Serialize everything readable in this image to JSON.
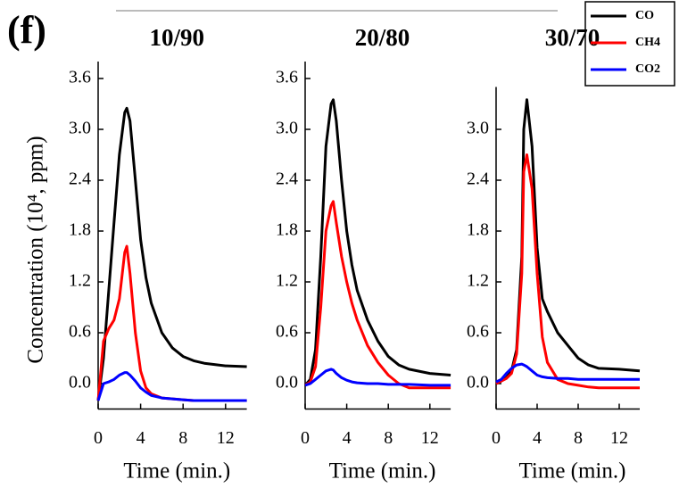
{
  "chart_data": [
    {
      "type": "line",
      "title": "10/90",
      "annotation": "(f)",
      "ylabel": "Concentration (10⁴, ppm)",
      "xlabel": "Time (min.)",
      "legend": "top-right",
      "x": [
        0,
        0.5,
        1,
        1.5,
        2,
        2.5,
        2.7,
        3,
        3.5,
        4,
        4.5,
        5,
        6,
        7,
        8,
        9,
        10,
        12,
        14
      ],
      "series": [
        {
          "name": "CO",
          "color": "#000000",
          "values": [
            -0.2,
            0.3,
            1.1,
            1.9,
            2.7,
            3.2,
            3.25,
            3.1,
            2.4,
            1.7,
            1.25,
            0.95,
            0.6,
            0.42,
            0.32,
            0.27,
            0.24,
            0.21,
            0.2
          ]
        },
        {
          "name": "CH4",
          "color": "#ff0000",
          "values": [
            -0.2,
            0.5,
            0.65,
            0.75,
            1.0,
            1.55,
            1.62,
            1.3,
            0.6,
            0.15,
            -0.05,
            -0.12,
            -0.17,
            -0.18,
            -0.19,
            -0.2,
            -0.2,
            -0.2,
            -0.2
          ]
        },
        {
          "name": "CO2",
          "color": "#0000ff",
          "values": [
            -0.2,
            0.0,
            0.02,
            0.05,
            0.1,
            0.13,
            0.13,
            0.1,
            0.03,
            -0.05,
            -0.1,
            -0.14,
            -0.17,
            -0.18,
            -0.19,
            -0.2,
            -0.2,
            -0.2,
            -0.2
          ]
        }
      ],
      "xlim": [
        0,
        14
      ],
      "ylim": [
        -0.3,
        3.8
      ],
      "xticks": [
        0,
        4,
        8,
        12
      ],
      "yticks": [
        {
          "value": 0,
          "label": "0.0"
        },
        0.6,
        1.2,
        1.8,
        2.4,
        {
          "value": 3,
          "label": "3.0"
        },
        3.6
      ]
    },
    {
      "type": "line",
      "title": "20/80",
      "xlabel": "Time (min.)",
      "x": [
        0,
        0.5,
        1,
        1.5,
        2,
        2.5,
        2.7,
        3,
        3.5,
        4,
        4.5,
        5,
        6,
        7,
        8,
        9,
        10,
        12,
        14
      ],
      "series": [
        {
          "color": "#000000",
          "values": [
            -0.02,
            0.05,
            0.4,
            1.5,
            2.8,
            3.3,
            3.35,
            3.1,
            2.4,
            1.8,
            1.4,
            1.1,
            0.75,
            0.5,
            0.32,
            0.22,
            0.17,
            0.12,
            0.1
          ]
        },
        {
          "color": "#ff0000",
          "values": [
            -0.02,
            0.02,
            0.2,
            0.9,
            1.8,
            2.1,
            2.15,
            1.9,
            1.5,
            1.2,
            0.95,
            0.75,
            0.45,
            0.25,
            0.1,
            0.0,
            -0.05,
            -0.05,
            -0.05
          ]
        },
        {
          "color": "#0000ff",
          "values": [
            -0.02,
            0.0,
            0.05,
            0.1,
            0.15,
            0.17,
            0.16,
            0.12,
            0.07,
            0.04,
            0.02,
            0.01,
            0,
            0,
            -0.01,
            -0.01,
            -0.01,
            -0.02,
            -0.02
          ]
        }
      ],
      "xlim": [
        0,
        14
      ],
      "ylim": [
        -0.3,
        3.8
      ],
      "xticks": [
        0,
        4,
        8,
        12
      ],
      "yticks": [
        {
          "value": 0,
          "label": "0.0"
        },
        0.6,
        1.2,
        1.8,
        2.4,
        {
          "value": 3,
          "label": "3.0"
        },
        3.6
      ]
    },
    {
      "type": "line",
      "title": "30/70",
      "xlabel": "Time (min.)",
      "x": [
        0,
        0.5,
        1,
        1.5,
        2,
        2.5,
        2.7,
        3,
        3.5,
        4,
        4.5,
        5,
        6,
        7,
        8,
        9,
        10,
        12,
        14
      ],
      "series": [
        {
          "color": "#000000",
          "values": [
            0,
            0.03,
            0.07,
            0.15,
            0.4,
            1.5,
            3.0,
            3.35,
            2.8,
            1.6,
            1.0,
            0.85,
            0.6,
            0.45,
            0.3,
            0.22,
            0.18,
            0.17,
            0.15
          ]
        },
        {
          "color": "#ff0000",
          "values": [
            0,
            0.03,
            0.06,
            0.12,
            0.35,
            1.3,
            2.5,
            2.7,
            2.3,
            1.3,
            0.55,
            0.25,
            0.05,
            0.0,
            -0.02,
            -0.04,
            -0.05,
            -0.05,
            -0.05
          ]
        },
        {
          "color": "#0000ff",
          "values": [
            0.02,
            0.05,
            0.12,
            0.18,
            0.22,
            0.23,
            0.22,
            0.2,
            0.15,
            0.1,
            0.08,
            0.07,
            0.06,
            0.06,
            0.05,
            0.05,
            0.05,
            0.05,
            0.05
          ]
        }
      ],
      "xlim": [
        0,
        14
      ],
      "ylim": [
        -0.3,
        3.5
      ],
      "xticks": [
        0,
        4,
        8,
        12
      ],
      "yticks": [
        {
          "value": 0,
          "label": "0.0"
        },
        0.6,
        1.2,
        1.8,
        2.4,
        {
          "value": 3,
          "label": "3.0"
        }
      ]
    }
  ]
}
